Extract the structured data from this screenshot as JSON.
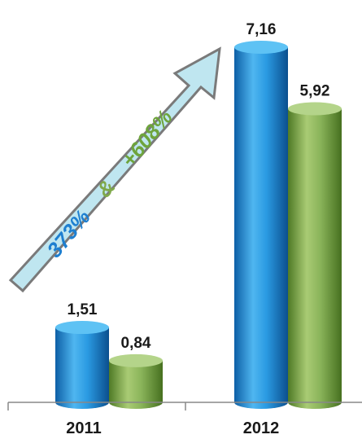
{
  "chart_data": {
    "type": "bar",
    "style": "3d-cylinder",
    "categories": [
      "2011",
      "2012"
    ],
    "series": [
      {
        "values": [
          1.51,
          7.16
        ],
        "labels": [
          "1,51",
          "7,16"
        ],
        "color": "#1e8fd8"
      },
      {
        "values": [
          0.84,
          5.92
        ],
        "labels": [
          "0,84",
          "5,92"
        ],
        "color": "#7fa94a"
      }
    ],
    "ylim": [
      0,
      7.16
    ],
    "grid": false,
    "legend": "none",
    "annotation": {
      "shape": "arrow",
      "color": "#bfe6f0",
      "parts": [
        {
          "text": "373%",
          "color": "#1e7fd0"
        },
        {
          "text": "&",
          "color": "#7fa94a"
        },
        {
          "text": "+608%",
          "color": "#6ea43c"
        }
      ]
    }
  }
}
